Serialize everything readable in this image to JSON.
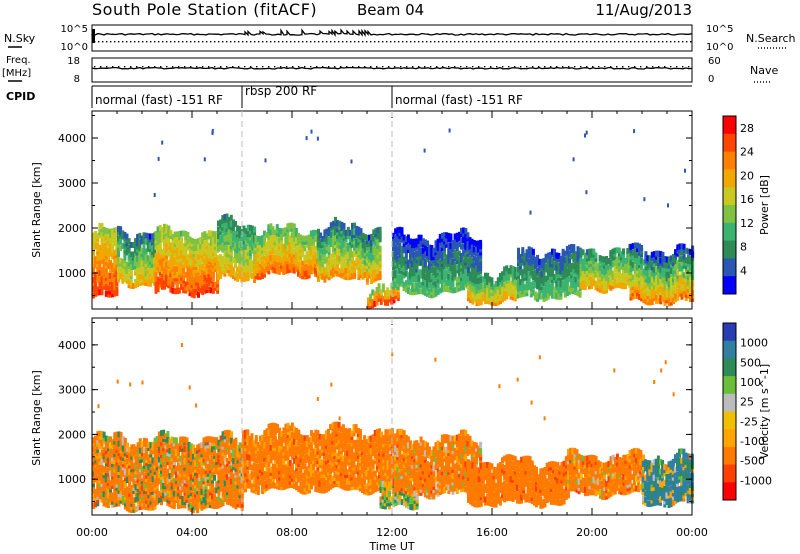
{
  "header": {
    "station": "South Pole Station (fitACF)",
    "beam": "Beam 04",
    "date": "11/Aug/2013"
  },
  "top_panels": {
    "nsky": {
      "label": "N.Sky",
      "left_ticks": [
        "10^5",
        "10^0"
      ],
      "right_ticks": [
        "10^5",
        "10^0"
      ],
      "right_label": "N.Search"
    },
    "freq": {
      "label_line1": "Freq.",
      "label_line2": "[MHz]",
      "left_ticks": [
        "18",
        "8"
      ],
      "right_ticks": [
        "60",
        "0"
      ],
      "right_label": "Nave"
    },
    "cpid": {
      "label": "CPID",
      "segments": [
        {
          "name": "normal (fast) -151 RF",
          "start_hour": 0,
          "end_hour": 6
        },
        {
          "name": "rbsp 200 RF",
          "start_hour": 6,
          "end_hour": 12
        },
        {
          "name": "normal (fast) -151 RF",
          "start_hour": 12,
          "end_hour": 24
        }
      ]
    }
  },
  "colors": {
    "power_scale": [
      "#0000ff",
      "#2a56b4",
      "#2e8b57",
      "#3cb371",
      "#7fc241",
      "#c8c820",
      "#f0a800",
      "#ff7f00",
      "#ff4500",
      "#ff0000"
    ],
    "velocity_scale": [
      "#2a3cb4",
      "#2e7fa0",
      "#2e8b57",
      "#6abf3a",
      "#bcbcbc",
      "#f0c000",
      "#ffa500",
      "#ff7a00",
      "#ff4000",
      "#ff0000"
    ]
  },
  "chart_data": [
    {
      "type": "heatmap",
      "panel": "power",
      "xlabel": "",
      "ylabel": "Slant Range [km]",
      "xlim": [
        0,
        24
      ],
      "ylim": [
        200,
        4600
      ],
      "yticks": [
        1000,
        2000,
        3000,
        4000
      ],
      "colorbar": {
        "label": "Power [dB]",
        "ticks": [
          4,
          8,
          12,
          16,
          20,
          24,
          28
        ],
        "range": [
          0,
          30
        ]
      },
      "bands": [
        {
          "t0": 0.0,
          "t1": 1.0,
          "r0": 500,
          "r1": 1900,
          "v0": 16,
          "v1": 28
        },
        {
          "t0": 1.0,
          "t1": 2.5,
          "r0": 800,
          "r1": 1900,
          "v0": 6,
          "v1": 22
        },
        {
          "t0": 2.5,
          "t1": 5.0,
          "r0": 600,
          "r1": 1900,
          "v0": 14,
          "v1": 28
        },
        {
          "t0": 5.0,
          "t1": 6.5,
          "r0": 900,
          "r1": 2100,
          "v0": 8,
          "v1": 22
        },
        {
          "t0": 6.5,
          "t1": 9.0,
          "r0": 1000,
          "r1": 1950,
          "v0": 12,
          "v1": 26
        },
        {
          "t0": 9.0,
          "t1": 11.5,
          "r0": 900,
          "r1": 2000,
          "v0": 6,
          "v1": 24
        },
        {
          "t0": 11.0,
          "t1": 12.2,
          "r0": 350,
          "r1": 700,
          "v0": 14,
          "v1": 28
        },
        {
          "t0": 12.0,
          "t1": 15.5,
          "r0": 600,
          "r1": 1800,
          "v0": 2,
          "v1": 14
        },
        {
          "t0": 15.0,
          "t1": 17.0,
          "r0": 400,
          "r1": 1000,
          "v0": 8,
          "v1": 22
        },
        {
          "t0": 17.0,
          "t1": 19.5,
          "r0": 500,
          "r1": 1500,
          "v0": 4,
          "v1": 14
        },
        {
          "t0": 19.5,
          "t1": 21.5,
          "r0": 700,
          "r1": 1500,
          "v0": 8,
          "v1": 22
        },
        {
          "t0": 21.5,
          "t1": 24.0,
          "r0": 400,
          "r1": 1500,
          "v0": 4,
          "v1": 26
        }
      ]
    },
    {
      "type": "heatmap",
      "panel": "velocity",
      "xlabel": "Time UT",
      "ylabel": "Slant Range [km]",
      "xlim": [
        0,
        24
      ],
      "ylim": [
        200,
        4600
      ],
      "yticks": [
        1000,
        2000,
        3000,
        4000
      ],
      "xticks": [
        "00:00",
        "04:00",
        "08:00",
        "12:00",
        "16:00",
        "20:00",
        "00:00"
      ],
      "colorbar": {
        "label": "Velocity [m s^-1]",
        "ticks": [
          1000,
          500,
          100,
          25,
          -25,
          -100,
          -500,
          -1000
        ]
      },
      "bands": [
        {
          "t0": 0.0,
          "t1": 6.0,
          "r0": 400,
          "r1": 1900,
          "v0": -500,
          "v1": 100
        },
        {
          "t0": 6.0,
          "t1": 12.0,
          "r0": 800,
          "r1": 2100,
          "v0": -500,
          "v1": -25
        },
        {
          "t0": 11.5,
          "t1": 13.0,
          "r0": 400,
          "r1": 900,
          "v0": -100,
          "v1": 100
        },
        {
          "t0": 12.0,
          "t1": 15.5,
          "r0": 700,
          "r1": 1900,
          "v0": -500,
          "v1": 25
        },
        {
          "t0": 15.0,
          "t1": 19.0,
          "r0": 500,
          "r1": 1400,
          "v0": -500,
          "v1": -100
        },
        {
          "t0": 19.0,
          "t1": 22.0,
          "r0": 700,
          "r1": 1500,
          "v0": -500,
          "v1": 25
        },
        {
          "t0": 22.0,
          "t1": 24.0,
          "r0": 500,
          "r1": 1500,
          "v0": -100,
          "v1": 500
        }
      ]
    }
  ]
}
